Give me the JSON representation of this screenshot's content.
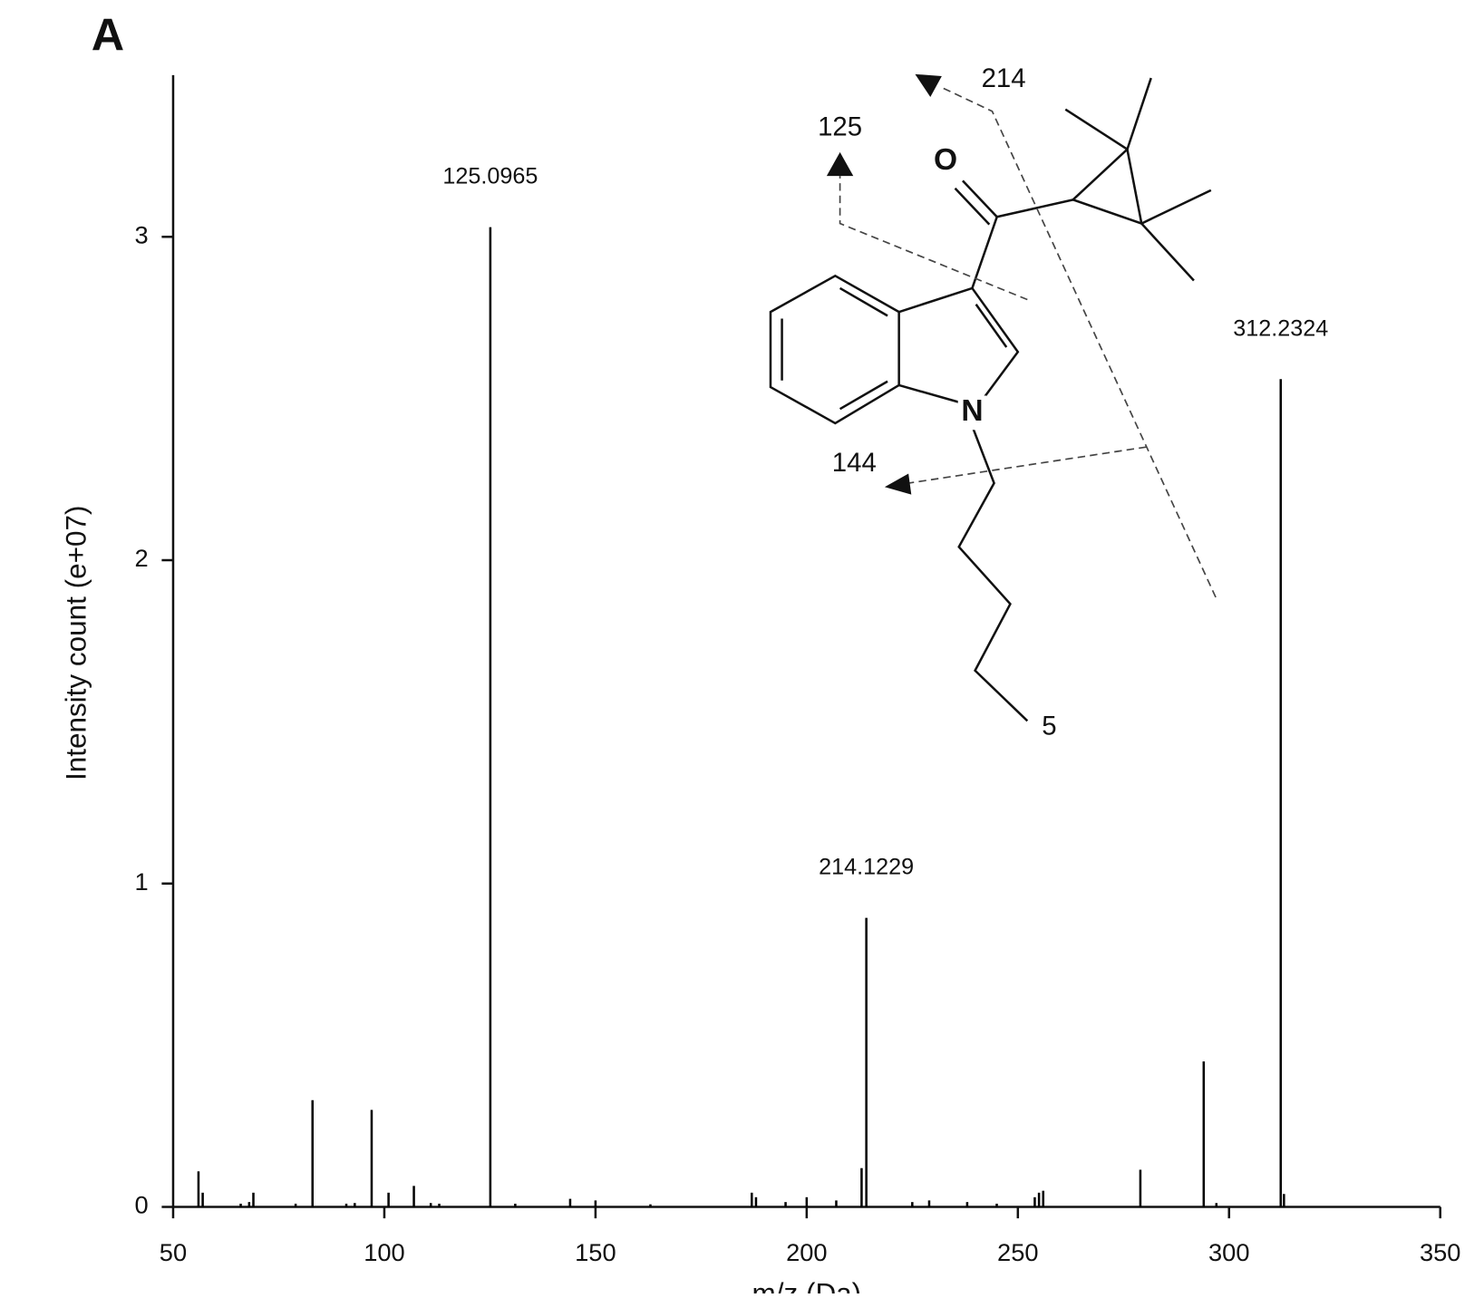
{
  "panel_label": "A",
  "chart_data": {
    "type": "stem",
    "xlabel": "m/z (Da)",
    "ylabel": "Intensity count (e+07)",
    "x": [
      56,
      57,
      66,
      68,
      69,
      79,
      83,
      91,
      93,
      97,
      101,
      107,
      111,
      113,
      125.0965,
      131,
      144,
      150,
      163,
      187,
      188,
      195,
      200,
      207,
      213,
      214.1229,
      225,
      229,
      238,
      245,
      254,
      255,
      256,
      279,
      294,
      297,
      312.2324,
      313
    ],
    "values": [
      0.11,
      0.044,
      0.01,
      0.015,
      0.044,
      0.01,
      0.33,
      0.01,
      0.012,
      0.3,
      0.044,
      0.065,
      0.012,
      0.01,
      3.03,
      0.01,
      0.025,
      0.02,
      0.008,
      0.044,
      0.03,
      0.015,
      0.03,
      0.02,
      0.12,
      0.894,
      0.015,
      0.02,
      0.015,
      0.01,
      0.03,
      0.044,
      0.05,
      0.115,
      0.45,
      0.012,
      2.56,
      0.04
    ],
    "color": "#000000",
    "xlim": [
      50,
      350
    ],
    "ylim": [
      0,
      3.5
    ],
    "xticks": [
      50,
      100,
      150,
      200,
      250,
      300,
      350
    ],
    "yticks": [
      0,
      1,
      2,
      3
    ]
  },
  "structure_labels": {
    "fragment_125": "125",
    "fragment_214": "214",
    "fragment_144": "144",
    "oxygen": "O",
    "nitrogen": "N",
    "position_5": "5"
  }
}
